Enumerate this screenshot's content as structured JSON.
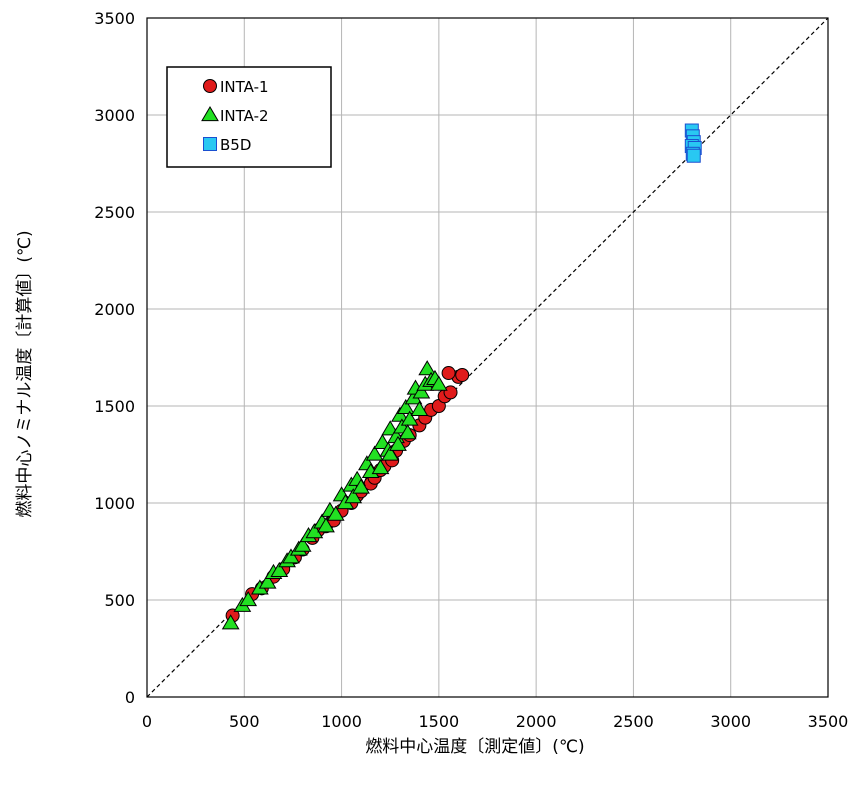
{
  "chart_data": {
    "type": "scatter",
    "xlabel": "燃料中心温度〔測定値〕(℃)",
    "ylabel": "燃料中心ノミナル温度〔計算値〕(℃)",
    "xlim": [
      0,
      3500
    ],
    "ylim": [
      0,
      3500
    ],
    "xticks": [
      "0",
      "500",
      "1000",
      "1500",
      "2000",
      "2500",
      "3000",
      "3500"
    ],
    "yticks": [
      "0",
      "500",
      "1000",
      "1500",
      "2000",
      "2500",
      "3000",
      "3500"
    ],
    "grid": true,
    "legend_position": "top-left",
    "reference_line": {
      "from": [
        0,
        0
      ],
      "to": [
        3500,
        3500
      ],
      "style": "dashed"
    },
    "series": [
      {
        "name": "INTA-1",
        "marker": "circle",
        "color": "#e01b1b",
        "x": [
          440,
          540,
          590,
          650,
          700,
          760,
          800,
          850,
          880,
          920,
          960,
          1000,
          1050,
          1080,
          1100,
          1150,
          1170,
          1200,
          1220,
          1260,
          1280,
          1320,
          1350,
          1400,
          1430,
          1460,
          1500,
          1530,
          1560,
          1600,
          1620,
          1550
        ],
        "y": [
          420,
          530,
          560,
          620,
          660,
          720,
          760,
          820,
          860,
          880,
          910,
          960,
          1000,
          1040,
          1060,
          1100,
          1130,
          1170,
          1190,
          1220,
          1270,
          1320,
          1350,
          1400,
          1440,
          1480,
          1500,
          1550,
          1570,
          1650,
          1660,
          1670
        ]
      },
      {
        "name": "INTA-2",
        "marker": "triangle",
        "color": "#22e022",
        "x": [
          430,
          490,
          520,
          580,
          620,
          650,
          680,
          720,
          740,
          780,
          800,
          830,
          860,
          900,
          920,
          940,
          970,
          1000,
          1020,
          1050,
          1060,
          1080,
          1100,
          1130,
          1150,
          1170,
          1200,
          1210,
          1240,
          1250,
          1280,
          1300,
          1310,
          1330,
          1350,
          1370,
          1380,
          1400,
          1410,
          1430,
          1440,
          1460,
          1480,
          1500,
          1250,
          1290,
          1340
        ],
        "y": [
          380,
          470,
          500,
          560,
          590,
          640,
          650,
          700,
          720,
          760,
          780,
          830,
          850,
          900,
          880,
          960,
          940,
          1040,
          1000,
          1090,
          1030,
          1120,
          1080,
          1200,
          1160,
          1250,
          1180,
          1310,
          1270,
          1380,
          1340,
          1450,
          1390,
          1490,
          1430,
          1540,
          1590,
          1480,
          1570,
          1610,
          1690,
          1630,
          1640,
          1610,
          1250,
          1300,
          1360
        ]
      },
      {
        "name": "B5D",
        "marker": "square",
        "color": "#29c8f2",
        "x": [
          2800,
          2805,
          2810,
          2800,
          2815,
          2805,
          2810
        ],
        "y": [
          2920,
          2890,
          2860,
          2840,
          2830,
          2800,
          2790
        ]
      }
    ]
  },
  "colors": {
    "grid": "#b5b5b5",
    "reference_line": "#000000",
    "plot_border": "#000000"
  }
}
